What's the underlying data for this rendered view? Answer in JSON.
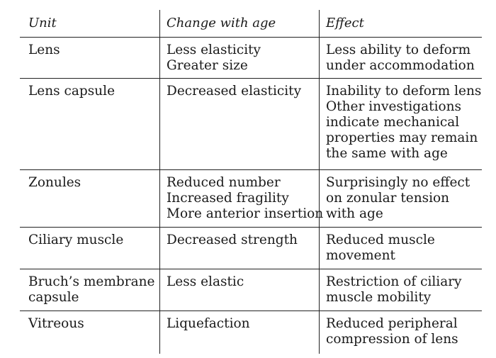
{
  "headers": {
    "unit": "Unit",
    "change": "Change with age",
    "effect": "Effect"
  },
  "rows": [
    {
      "unit": [
        "Lens"
      ],
      "change": [
        "Less elasticity",
        "Greater size"
      ],
      "effect": [
        "Less ability to deform",
        "under accommodation"
      ]
    },
    {
      "unit": [
        "Lens capsule"
      ],
      "change": [
        "Decreased elasticity"
      ],
      "effect": [
        "Inability to deform lens",
        "Other investigations",
        "indicate mechanical",
        "properties may remain",
        "the same with age"
      ]
    },
    {
      "unit": [
        "Zonules"
      ],
      "change": [
        "Reduced number",
        "Increased fragility",
        "More anterior insertion"
      ],
      "effect": [
        "Surprisingly no effect",
        "on zonular tension",
        "with age"
      ]
    },
    {
      "unit": [
        "Ciliary muscle"
      ],
      "change": [
        "Decreased strength"
      ],
      "effect": [
        "Reduced muscle",
        "movement"
      ]
    },
    {
      "unit": [
        "Bruch’s membrane",
        "capsule"
      ],
      "change": [
        "Less elastic"
      ],
      "effect": [
        "Restriction of ciliary",
        "muscle mobility"
      ]
    },
    {
      "unit": [
        "Vitreous"
      ],
      "change": [
        "Liquefaction"
      ],
      "effect": [
        "Reduced peripheral",
        "compression of lens"
      ]
    }
  ]
}
